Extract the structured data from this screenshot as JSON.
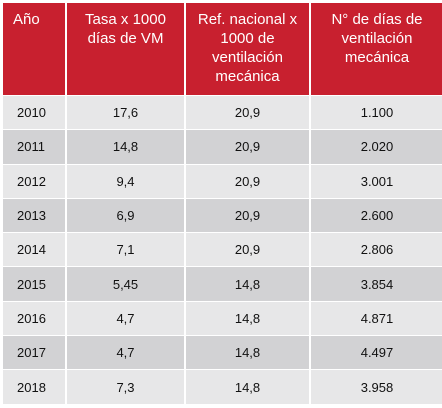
{
  "table": {
    "headers": [
      "Año",
      "Tasa x 1000 días de VM",
      "Ref. nacional x 1000 de ventilación mecánica",
      "N° de días de ventilación mecánica"
    ],
    "rows": [
      [
        "2010",
        "17,6",
        "20,9",
        "1.100"
      ],
      [
        "2011",
        "14,8",
        "20,9",
        "2.020"
      ],
      [
        "2012",
        "9,4",
        "20,9",
        "3.001"
      ],
      [
        "2013",
        "6,9",
        "20,9",
        "2.600"
      ],
      [
        "2014",
        "7,1",
        "20,9",
        "2.806"
      ],
      [
        "2015",
        "5,45",
        "14,8",
        "3.854"
      ],
      [
        "2016",
        "4,7",
        "14,8",
        "4.871"
      ],
      [
        "2017",
        "4,7",
        "14,8",
        "4.497"
      ],
      [
        "2018",
        "7,3",
        "14,8",
        "3.958"
      ]
    ],
    "colors": {
      "header_bg": "#c8202f",
      "header_text": "#ffffff",
      "row_light": "#e7e7e8",
      "row_dark": "#d2d2d4"
    }
  }
}
